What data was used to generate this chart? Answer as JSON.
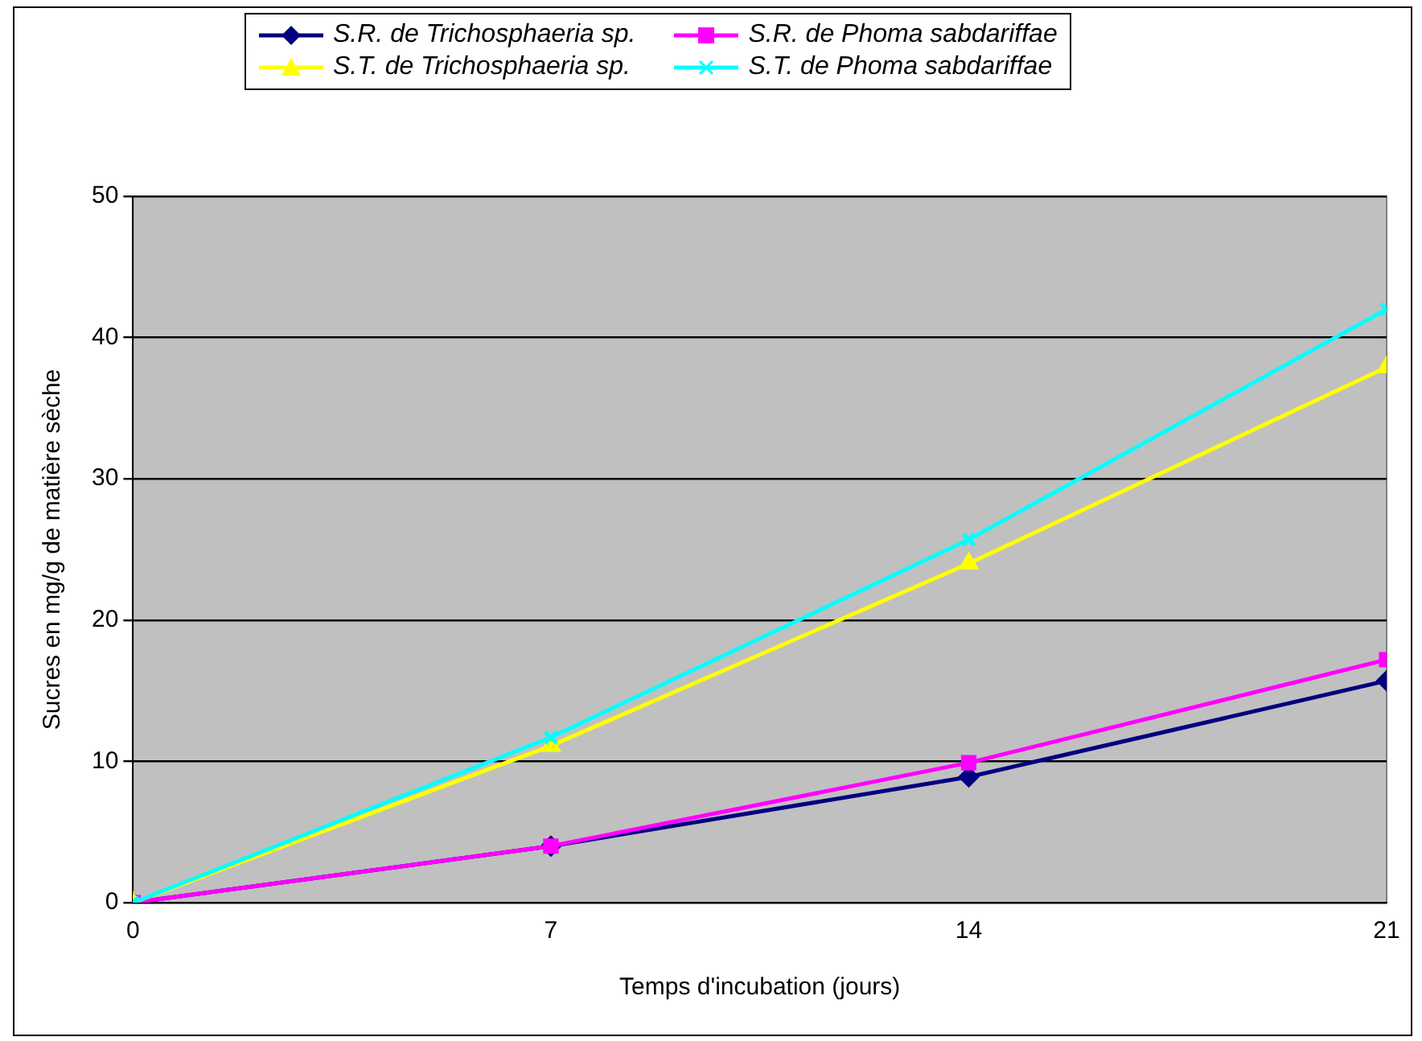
{
  "chart_data": {
    "type": "line",
    "xlabel": "Temps d'incubation (jours)",
    "ylabel": "Sucres en mg/g de matière sèche",
    "x": [
      0,
      7,
      14,
      21
    ],
    "xlim": [
      0,
      21
    ],
    "xticks": [
      0,
      7,
      14,
      21
    ],
    "ylim": [
      0,
      50
    ],
    "yticks": [
      0,
      10,
      20,
      30,
      40,
      50
    ],
    "grid": "y",
    "legend": "top",
    "line_style": "solid",
    "series": [
      {
        "name": "S.R. de Trichosphaeria sp.",
        "color": "#000080",
        "marker": "diamond",
        "values": [
          0,
          4.0,
          8.9,
          15.7
        ]
      },
      {
        "name": "S.R. de Phoma sabdariffae",
        "color": "#ff00ff",
        "marker": "square",
        "values": [
          0,
          4.0,
          9.9,
          17.2
        ]
      },
      {
        "name": "S.T. de Trichosphaeria sp.",
        "color": "#ffff00",
        "marker": "triangle",
        "values": [
          0,
          11.1,
          24.0,
          37.9
        ]
      },
      {
        "name": "S.T. de Phoma sabdariffae",
        "color": "#00ffff",
        "marker": "cross",
        "values": [
          0,
          11.7,
          25.7,
          42.0
        ]
      }
    ]
  }
}
